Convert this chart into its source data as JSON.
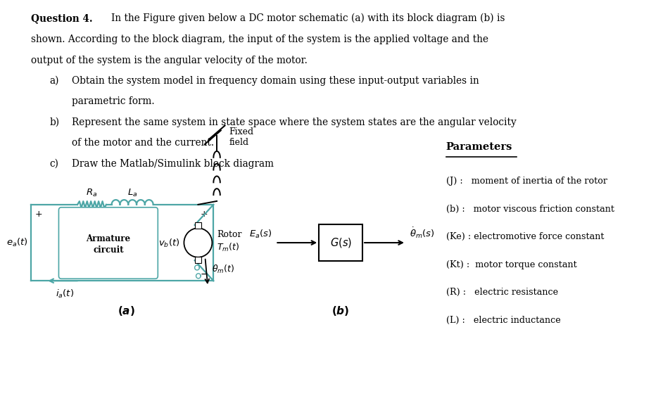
{
  "background_color": "#ffffff",
  "circuit_color": "#4DA6A6",
  "black": "#000000",
  "params_title": "Parameters",
  "params": [
    "(J) :   moment of inertia of the rotor",
    "(b) :   motor viscous friction constant",
    "(Ke) : electromotive force constant",
    "(Kt) :  motor torque constant",
    "(R) :   electric resistance",
    "(L) :   electric inductance"
  ]
}
